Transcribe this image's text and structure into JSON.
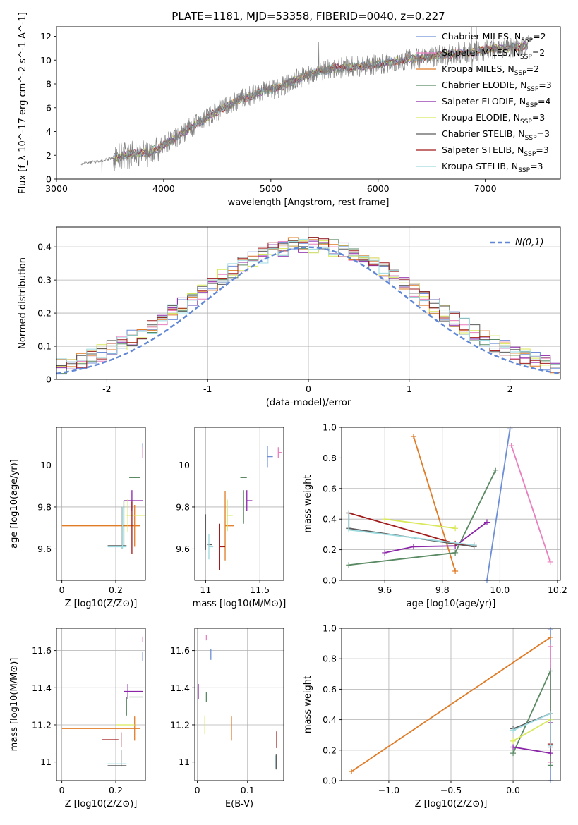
{
  "figure": {
    "title": "PLATE=1181, MJD=53358, FIBERID=0040, z=0.227"
  },
  "colors": {
    "Chabrier MILES": "#6e8fd8",
    "Salpeter MILES": "#e97fbf",
    "Kroupa MILES": "#e07b26",
    "Chabrier ELODIE": "#5a8a63",
    "Salpeter ELODIE": "#8b25a8",
    "Kroupa ELODIE": "#d9e85a",
    "Chabrier STELIB": "#5c5c5c",
    "Salpeter STELIB": "#a11b1b",
    "Kroupa STELIB": "#9ddbe0",
    "normal": "#5f87d5",
    "data": "#808080"
  },
  "chart_data": [
    {
      "id": "spectrum",
      "type": "line",
      "title": "PLATE=1181, MJD=53358, FIBERID=0040, z=0.227",
      "xlabel": "wavelength [Angstrom, rest frame]",
      "ylabel": "Flux [f_λ 10^-17 erg cm^-2 s^-1 A^-1]",
      "xlim": [
        3000,
        7700
      ],
      "ylim": [
        0,
        12.8
      ],
      "xticks": [
        3000,
        4000,
        5000,
        6000,
        7000
      ],
      "yticks": [
        0,
        2,
        4,
        6,
        8,
        10,
        12
      ],
      "grid": false,
      "legend": "top-right",
      "legend_entries": [
        {
          "label": "Chabrier MILES, N",
          "sub": "SSP",
          "tail": "=2",
          "key": "Chabrier MILES"
        },
        {
          "label": "Salpeter MILES, N",
          "sub": "SSP",
          "tail": "=2",
          "key": "Salpeter MILES"
        },
        {
          "label": "Kroupa MILES, N",
          "sub": "SSP",
          "tail": "=2",
          "key": "Kroupa MILES"
        },
        {
          "label": "Chabrier ELODIE, N",
          "sub": "SSP",
          "tail": "=3",
          "key": "Chabrier ELODIE"
        },
        {
          "label": "Salpeter ELODIE, N",
          "sub": "SSP",
          "tail": "=4",
          "key": "Salpeter ELODIE"
        },
        {
          "label": "Kroupa ELODIE, N",
          "sub": "SSP",
          "tail": "=3",
          "key": "Kroupa ELODIE"
        },
        {
          "label": "Chabrier STELIB, N",
          "sub": "SSP",
          "tail": "=3",
          "key": "Chabrier STELIB"
        },
        {
          "label": "Salpeter STELIB, N",
          "sub": "SSP",
          "tail": "=3",
          "key": "Salpeter STELIB"
        },
        {
          "label": "Kroupa STELIB, N",
          "sub": "SSP",
          "tail": "=3",
          "key": "Kroupa STELIB"
        }
      ],
      "continuum": [
        [
          3220,
          1.3
        ],
        [
          3400,
          1.5
        ],
        [
          3550,
          1.8
        ],
        [
          3700,
          2.1
        ],
        [
          3850,
          2.2
        ],
        [
          3950,
          2.6
        ],
        [
          4100,
          3.4
        ],
        [
          4300,
          4.6
        ],
        [
          4500,
          5.7
        ],
        [
          4700,
          6.6
        ],
        [
          4900,
          7.3
        ],
        [
          5100,
          7.8
        ],
        [
          5300,
          8.6
        ],
        [
          5500,
          9.2
        ],
        [
          5700,
          9.4
        ],
        [
          5900,
          9.5
        ],
        [
          6100,
          9.8
        ],
        [
          6300,
          10.1
        ],
        [
          6500,
          10.3
        ],
        [
          6700,
          10.5
        ],
        [
          6900,
          10.7
        ],
        [
          7100,
          11.0
        ],
        [
          7300,
          11.1
        ],
        [
          7400,
          11.2
        ]
      ],
      "data_start": 3220,
      "data_end": 7400,
      "model_start": 3530,
      "model_end": 7400
    },
    {
      "id": "residuals",
      "type": "line",
      "xlabel": "(data-model)/error",
      "ylabel": "Normed distribution",
      "xlim": [
        -2.5,
        2.5
      ],
      "ylim": [
        0,
        0.46
      ],
      "xticks": [
        -2,
        -1,
        0,
        1,
        2
      ],
      "yticks": [
        0.0,
        0.1,
        0.2,
        0.3,
        0.4
      ],
      "grid": true,
      "legend": "top-right",
      "legend_label": "N(0,1)",
      "bin_width": 0.1
    },
    {
      "id": "age-vs-Z",
      "type": "scatter",
      "xlabel": "Z [log10(Z/Z⊙)]",
      "ylabel": "age [log10(age/yr)]",
      "xlim": [
        -0.02,
        0.31
      ],
      "ylim": [
        9.45,
        10.18
      ],
      "xticks": [
        0.0,
        0.2
      ],
      "yticks": [
        9.6,
        9.8,
        10.0
      ],
      "grid": true,
      "points": [
        {
          "model": "Chabrier MILES",
          "x": 0.3,
          "y": 10.07,
          "xe": 0.0,
          "ye": 0.07
        },
        {
          "model": "Salpeter MILES",
          "x": 0.3,
          "y": 10.06,
          "xe": 0.0,
          "ye": 0.05
        },
        {
          "model": "Kroupa MILES",
          "x": 0.0,
          "y": 9.71,
          "xe": 0.29,
          "ye": 0.0
        },
        {
          "model": "Kroupa MILES",
          "x": 0.27,
          "y": 9.71,
          "xe": 0.0,
          "ye": 0.2
        },
        {
          "model": "Chabrier ELODIE",
          "x": 0.25,
          "y": 9.94,
          "xe": 0.04,
          "ye": 0.0
        },
        {
          "model": "Chabrier ELODIE",
          "x": 0.23,
          "y": 9.72,
          "xe": 0.0,
          "ye": 0.22
        },
        {
          "model": "Salpeter ELODIE",
          "x": 0.23,
          "y": 9.83,
          "xe": 0.07,
          "ye": 0.0
        },
        {
          "model": "Salpeter ELODIE",
          "x": 0.26,
          "y": 9.83,
          "xe": 0.0,
          "ye": 0.1
        },
        {
          "model": "Kroupa ELODIE",
          "x": 0.24,
          "y": 9.76,
          "xe": 0.07,
          "ye": 0.0
        },
        {
          "model": "Kroupa ELODIE",
          "x": 0.245,
          "y": 9.76,
          "xe": 0.0,
          "ye": 0.16
        },
        {
          "model": "Chabrier STELIB",
          "x": 0.17,
          "y": 9.615,
          "xe": 0.07,
          "ye": 0.0
        },
        {
          "model": "Chabrier STELIB",
          "x": 0.22,
          "y": 9.7,
          "xe": 0.0,
          "ye": 0.2
        },
        {
          "model": "Salpeter STELIB",
          "x": 0.26,
          "y": 9.7,
          "xe": 0.0,
          "ye": 0.25
        },
        {
          "model": "Kroupa STELIB",
          "x": 0.17,
          "y": 9.61,
          "xe": 0.07,
          "ye": 0.0
        },
        {
          "model": "Kroupa STELIB",
          "x": 0.225,
          "y": 9.7,
          "xe": 0.0,
          "ye": 0.2
        }
      ]
    },
    {
      "id": "age-vs-mass",
      "type": "scatter",
      "xlabel": "mass [log10(M/M⊙)]",
      "xlim": [
        10.9,
        11.72
      ],
      "ylim": [
        9.45,
        10.18
      ],
      "xticks": [
        11.0,
        11.5
      ],
      "yticks": [
        9.6,
        9.8,
        10.0
      ],
      "grid": true,
      "points": [
        {
          "model": "Chabrier MILES",
          "x": 11.57,
          "y": 10.04,
          "xe": 0.05,
          "ye": 0.1
        },
        {
          "model": "Salpeter MILES",
          "x": 11.67,
          "y": 10.06,
          "xe": 0.03,
          "ye": 0.05
        },
        {
          "model": "Kroupa MILES",
          "x": 11.18,
          "y": 9.71,
          "xe": 0.08,
          "ye": 0.33
        },
        {
          "model": "Chabrier ELODIE",
          "x": 11.32,
          "y": 9.94,
          "xe": 0.06,
          "ye": 0.0
        },
        {
          "model": "Chabrier ELODIE",
          "x": 11.35,
          "y": 9.8,
          "xe": 0.0,
          "ye": 0.16
        },
        {
          "model": "Salpeter ELODIE",
          "x": 11.38,
          "y": 9.83,
          "xe": 0.05,
          "ye": 0.1
        },
        {
          "model": "Kroupa ELODIE",
          "x": 11.2,
          "y": 9.76,
          "xe": 0.05,
          "ye": 0.15
        },
        {
          "model": "Chabrier STELIB",
          "x": 11.02,
          "y": 9.62,
          "xe": 0.04,
          "ye": 0.0
        },
        {
          "model": "Chabrier STELIB",
          "x": 11.0,
          "y": 9.68,
          "xe": 0.0,
          "ye": 0.17
        },
        {
          "model": "Salpeter STELIB",
          "x": 11.13,
          "y": 9.61,
          "xe": 0.05,
          "ye": 0.22
        },
        {
          "model": "Kroupa STELIB",
          "x": 11.03,
          "y": 9.61,
          "xe": 0.04,
          "ye": 0.12
        }
      ]
    },
    {
      "id": "weight-vs-age",
      "type": "line",
      "xlabel": "age [log10(age/yr)]",
      "ylabel": "mass weight",
      "xlim": [
        9.45,
        10.21
      ],
      "ylim": [
        0.0,
        1.0
      ],
      "xticks": [
        9.6,
        9.8,
        10.0,
        10.2
      ],
      "yticks": [
        0.0,
        0.2,
        0.4,
        0.6,
        0.8,
        1.0
      ],
      "grid": true,
      "series": [
        {
          "model": "Chabrier MILES",
          "x": [
            9.955,
            10.035
          ],
          "y": [
            0.0,
            0.99
          ]
        },
        {
          "model": "Salpeter MILES",
          "x": [
            10.04,
            10.175
          ],
          "y": [
            0.88,
            0.12
          ]
        },
        {
          "model": "Kroupa MILES",
          "x": [
            9.7,
            9.845
          ],
          "y": [
            0.94,
            0.06
          ]
        },
        {
          "model": "Chabrier ELODIE",
          "x": [
            9.475,
            9.845,
            9.985
          ],
          "y": [
            0.1,
            0.18,
            0.72
          ]
        },
        {
          "model": "Salpeter ELODIE",
          "x": [
            9.6,
            9.7,
            9.845,
            9.955
          ],
          "y": [
            0.18,
            0.22,
            0.225,
            0.38
          ]
        },
        {
          "model": "Kroupa ELODIE",
          "x": [
            9.6,
            9.845
          ],
          "y": [
            0.4,
            0.34
          ]
        },
        {
          "model": "Chabrier STELIB",
          "x": [
            9.475,
            9.475,
            9.91
          ],
          "y": [
            0.44,
            0.34,
            0.22
          ]
        },
        {
          "model": "Salpeter STELIB",
          "x": [
            9.475,
            9.845,
            9.91
          ],
          "y": [
            0.44,
            0.24,
            0.23
          ]
        },
        {
          "model": "Kroupa STELIB",
          "x": [
            9.475,
            9.475,
            9.91
          ],
          "y": [
            0.44,
            0.33,
            0.23
          ]
        }
      ]
    },
    {
      "id": "mass-vs-Z",
      "type": "scatter",
      "xlabel": "Z [log10(Z/Z⊙)]",
      "ylabel": "mass [log10(M/M⊙)]",
      "xlim": [
        -0.02,
        0.31
      ],
      "ylim": [
        10.9,
        11.72
      ],
      "xticks": [
        0.0,
        0.2
      ],
      "yticks": [
        11.0,
        11.2,
        11.4,
        11.6
      ],
      "grid": true,
      "points": [
        {
          "model": "Chabrier MILES",
          "x": 0.3,
          "y": 11.57,
          "xe": 0.0,
          "ye": 0.05
        },
        {
          "model": "Salpeter MILES",
          "x": 0.3,
          "y": 11.66,
          "xe": 0.0,
          "ye": 0.03
        },
        {
          "model": "Kroupa MILES",
          "x": 0.0,
          "y": 11.18,
          "xe": 0.29,
          "ye": 0.0
        },
        {
          "model": "Kroupa MILES",
          "x": 0.27,
          "y": 11.18,
          "xe": 0.0,
          "ye": 0.13
        },
        {
          "model": "Chabrier ELODIE",
          "x": 0.25,
          "y": 11.35,
          "xe": 0.05,
          "ye": 0.0
        },
        {
          "model": "Chabrier ELODIE",
          "x": 0.24,
          "y": 11.3,
          "xe": 0.0,
          "ye": 0.1
        },
        {
          "model": "Salpeter ELODIE",
          "x": 0.23,
          "y": 11.38,
          "xe": 0.07,
          "ye": 0.0
        },
        {
          "model": "Salpeter ELODIE",
          "x": 0.245,
          "y": 11.38,
          "xe": 0.0,
          "ye": 0.08
        },
        {
          "model": "Kroupa ELODIE",
          "x": 0.2,
          "y": 11.2,
          "xe": 0.07,
          "ye": 0.0
        },
        {
          "model": "Chabrier STELIB",
          "x": 0.17,
          "y": 10.98,
          "xe": 0.07,
          "ye": 0.0
        },
        {
          "model": "Chabrier STELIB",
          "x": 0.22,
          "y": 11.02,
          "xe": 0.0,
          "ye": 0.09
        },
        {
          "model": "Salpeter STELIB",
          "x": 0.15,
          "y": 11.12,
          "xe": 0.06,
          "ye": 0.0
        },
        {
          "model": "Salpeter STELIB",
          "x": 0.22,
          "y": 11.12,
          "xe": 0.0,
          "ye": 0.08
        },
        {
          "model": "Kroupa STELIB",
          "x": 0.17,
          "y": 10.99,
          "xe": 0.07,
          "ye": 0.0
        }
      ]
    },
    {
      "id": "mass-vs-EBV",
      "type": "scatter",
      "xlabel": "E(B-V)",
      "xlim": [
        -0.005,
        0.172
      ],
      "ylim": [
        10.9,
        11.72
      ],
      "xticks": [
        0.0,
        0.1
      ],
      "yticks": [
        11.0,
        11.2,
        11.4,
        11.6
      ],
      "grid": true,
      "points": [
        {
          "model": "Chabrier MILES",
          "x": 0.027,
          "y": 11.58,
          "xe": 0.0,
          "ye": 0.06
        },
        {
          "model": "Salpeter MILES",
          "x": 0.018,
          "y": 11.67,
          "xe": 0.0,
          "ye": 0.03
        },
        {
          "model": "Kroupa MILES",
          "x": 0.068,
          "y": 11.18,
          "xe": 0.0,
          "ye": 0.13
        },
        {
          "model": "Chabrier ELODIE",
          "x": 0.018,
          "y": 11.35,
          "xe": 0.0,
          "ye": 0.05
        },
        {
          "model": "Salpeter ELODIE",
          "x": 0.002,
          "y": 11.38,
          "xe": 0.0,
          "ye": 0.08
        },
        {
          "model": "Kroupa ELODIE",
          "x": 0.015,
          "y": 11.2,
          "xe": 0.0,
          "ye": 0.1
        },
        {
          "model": "Chabrier STELIB",
          "x": 0.157,
          "y": 11.0,
          "xe": 0.0,
          "ye": 0.08
        },
        {
          "model": "Salpeter STELIB",
          "x": 0.158,
          "y": 11.12,
          "xe": 0.0,
          "ye": 0.09
        },
        {
          "model": "Kroupa STELIB",
          "x": 0.155,
          "y": 11.0,
          "xe": 0.0,
          "ye": 0.07
        }
      ]
    },
    {
      "id": "weight-vs-Z",
      "type": "line",
      "xlabel": "Z [log10(Z/Z⊙)]",
      "ylabel": "mass weight",
      "xlim": [
        -1.38,
        0.38
      ],
      "ylim": [
        0.0,
        1.0
      ],
      "xticks": [
        -1.0,
        -0.5,
        0.0
      ],
      "yticks": [
        0.0,
        0.2,
        0.4,
        0.6,
        0.8,
        1.0
      ],
      "grid": true,
      "series": [
        {
          "model": "Chabrier MILES",
          "x": [
            0.3,
            0.3
          ],
          "y": [
            0.0,
            0.99
          ]
        },
        {
          "model": "Salpeter MILES",
          "x": [
            0.3,
            0.3
          ],
          "y": [
            0.12,
            0.88
          ]
        },
        {
          "model": "Kroupa MILES",
          "x": [
            -1.3,
            0.3
          ],
          "y": [
            0.06,
            0.94
          ]
        },
        {
          "model": "Chabrier ELODIE",
          "x": [
            0.0,
            0.3,
            0.3
          ],
          "y": [
            0.18,
            0.72,
            0.1
          ]
        },
        {
          "model": "Salpeter ELODIE",
          "x": [
            0.0,
            0.3,
            0.3
          ],
          "y": [
            0.22,
            0.18,
            0.38
          ]
        },
        {
          "model": "Kroupa ELODIE",
          "x": [
            0.0,
            0.3
          ],
          "y": [
            0.26,
            0.4
          ]
        },
        {
          "model": "Chabrier STELIB",
          "x": [
            0.0,
            0.3,
            0.3
          ],
          "y": [
            0.34,
            0.44,
            0.22
          ]
        },
        {
          "model": "Salpeter STELIB",
          "x": [
            0.3,
            0.3
          ],
          "y": [
            0.24,
            0.44
          ]
        },
        {
          "model": "Kroupa STELIB",
          "x": [
            0.0,
            0.3,
            0.3
          ],
          "y": [
            0.33,
            0.44,
            0.23
          ]
        }
      ]
    }
  ]
}
